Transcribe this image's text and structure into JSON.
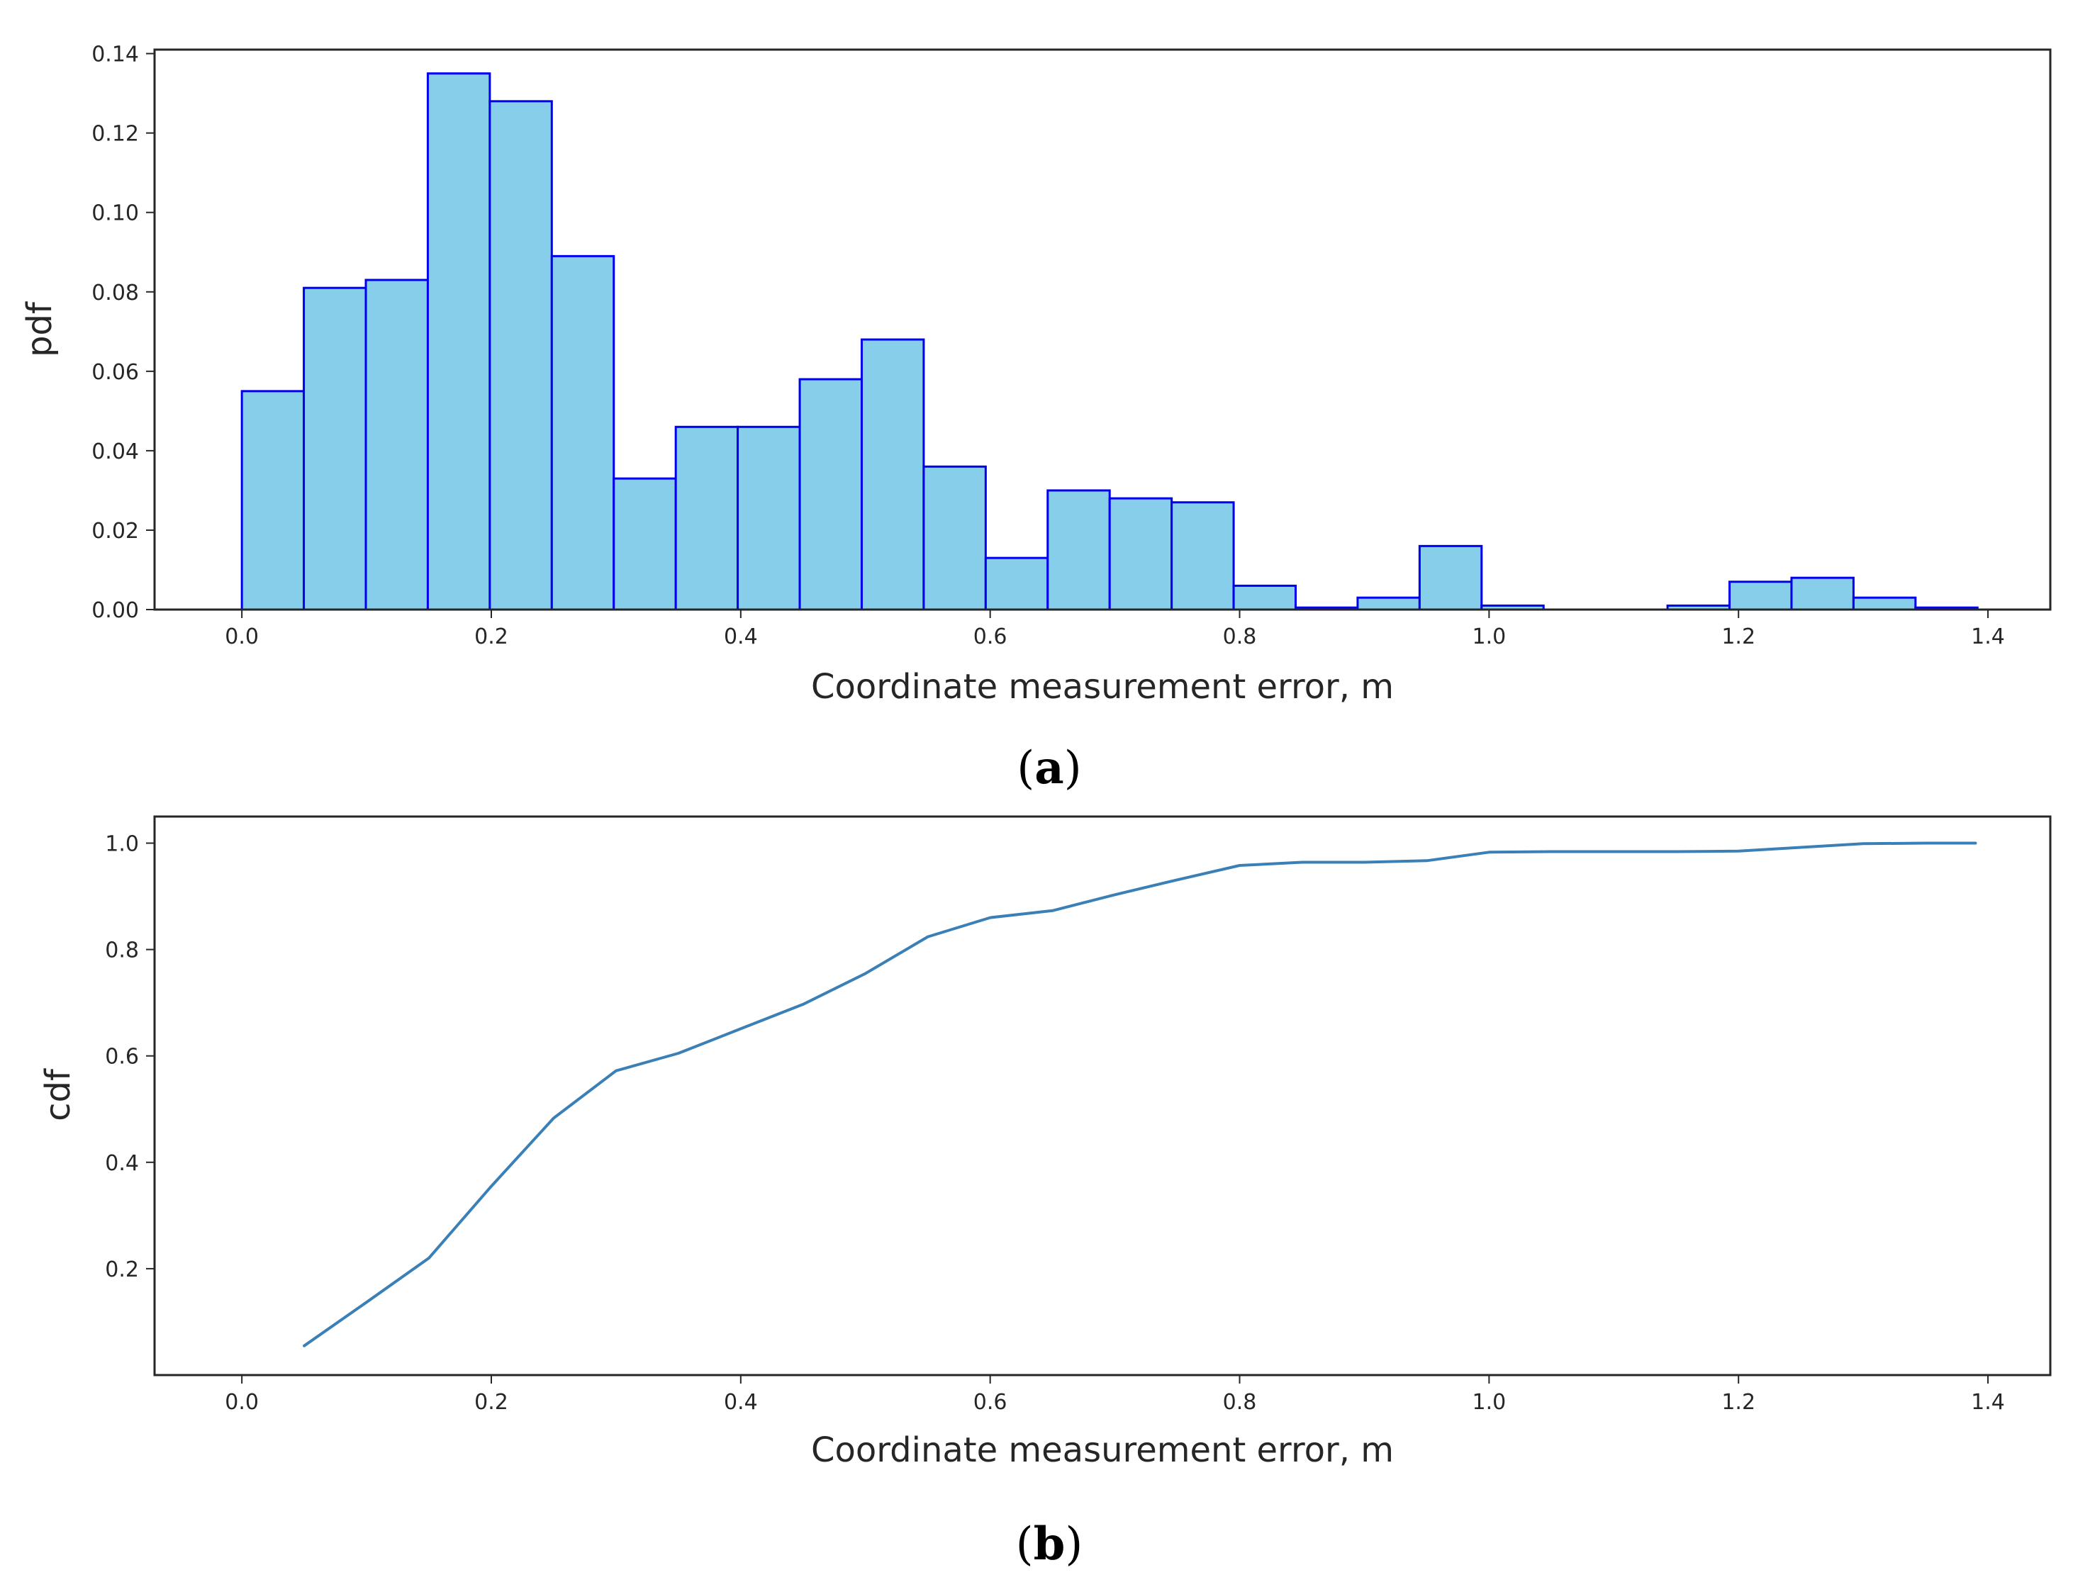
{
  "colors": {
    "bar_fill": "#87ceeb",
    "bar_edge": "#0000ee",
    "line": "#3a80b6",
    "axis": "#262626"
  },
  "chart_data": [
    {
      "type": "bar",
      "subtype": "histogram",
      "caption_label": "a",
      "title": "",
      "xlabel": "Coordinate measurement error, m",
      "ylabel": "pdf",
      "xlim": [
        -0.07,
        1.45
      ],
      "ylim": [
        0,
        0.141
      ],
      "xticks": [
        0.0,
        0.2,
        0.4,
        0.6,
        0.8,
        1.0,
        1.2,
        1.4
      ],
      "xtick_labels": [
        "0.0",
        "0.2",
        "0.4",
        "0.6",
        "0.8",
        "1.0",
        "1.2",
        "1.4"
      ],
      "yticks": [
        0.0,
        0.02,
        0.04,
        0.06,
        0.08,
        0.1,
        0.12,
        0.14
      ],
      "ytick_labels": [
        "0.00",
        "0.02",
        "0.04",
        "0.06",
        "0.08",
        "0.10",
        "0.12",
        "0.14"
      ],
      "bin_width": 0.0497,
      "bin_starts": [
        0.0,
        0.0497,
        0.0994,
        0.1491,
        0.1988,
        0.2485,
        0.2982,
        0.3479,
        0.3976,
        0.4473,
        0.497,
        0.5467,
        0.5964,
        0.6461,
        0.6958,
        0.7455,
        0.7952,
        0.8449,
        0.8946,
        0.9443,
        0.994,
        1.0437,
        1.0934,
        1.1431,
        1.1928,
        1.2425,
        1.2922,
        1.3419
      ],
      "values": [
        0.055,
        0.081,
        0.083,
        0.135,
        0.128,
        0.089,
        0.033,
        0.046,
        0.046,
        0.058,
        0.068,
        0.036,
        0.013,
        0.03,
        0.028,
        0.027,
        0.006,
        0.0005,
        0.003,
        0.016,
        0.001,
        0.0,
        0.0,
        0.001,
        0.007,
        0.008,
        0.003,
        0.0005
      ]
    },
    {
      "type": "line",
      "caption_label": "b",
      "title": "",
      "xlabel": "Coordinate measurement error, m",
      "ylabel": "cdf",
      "xlim": [
        -0.07,
        1.45
      ],
      "ylim": [
        0.0,
        1.05
      ],
      "xticks": [
        0.0,
        0.2,
        0.4,
        0.6,
        0.8,
        1.0,
        1.2,
        1.4
      ],
      "xtick_labels": [
        "0.0",
        "0.2",
        "0.4",
        "0.6",
        "0.8",
        "1.0",
        "1.2",
        "1.4"
      ],
      "yticks": [
        0.2,
        0.4,
        0.6,
        0.8,
        1.0
      ],
      "ytick_labels": [
        "0.2",
        "0.4",
        "0.6",
        "0.8",
        "1.0"
      ],
      "x": [
        0.05,
        0.1,
        0.15,
        0.2,
        0.25,
        0.3,
        0.35,
        0.4,
        0.45,
        0.5,
        0.55,
        0.6,
        0.65,
        0.7,
        0.75,
        0.8,
        0.85,
        0.9,
        0.95,
        1.0,
        1.05,
        1.1,
        1.15,
        1.2,
        1.25,
        1.3,
        1.35,
        1.39
      ],
      "y": [
        0.055,
        0.137,
        0.22,
        0.355,
        0.483,
        0.572,
        0.605,
        0.651,
        0.697,
        0.755,
        0.824,
        0.86,
        0.873,
        0.903,
        0.931,
        0.958,
        0.964,
        0.964,
        0.967,
        0.983,
        0.984,
        0.984,
        0.984,
        0.985,
        0.992,
        0.999,
        1.0,
        1.0
      ]
    }
  ]
}
